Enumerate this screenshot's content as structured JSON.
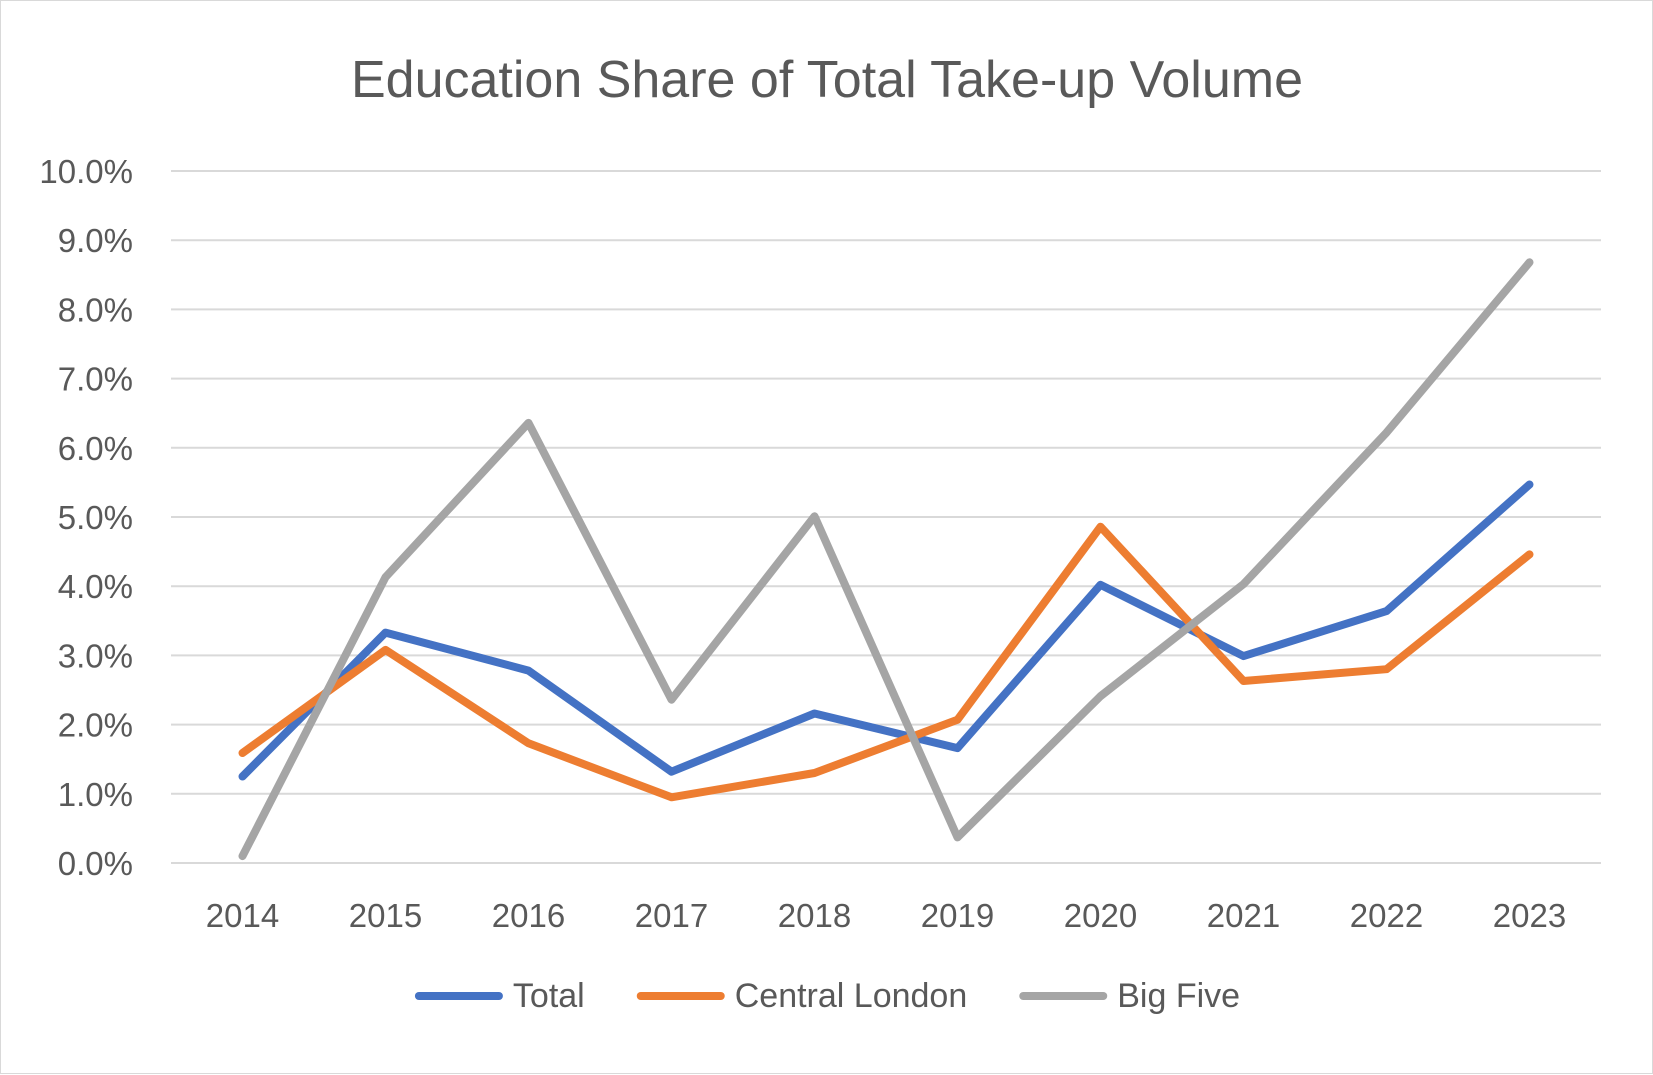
{
  "chart_data": {
    "type": "line",
    "title": "Education Share of Total Take-up Volume",
    "xlabel": "",
    "ylabel": "",
    "categories": [
      "2014",
      "2015",
      "2016",
      "2017",
      "2018",
      "2019",
      "2020",
      "2021",
      "2022",
      "2023"
    ],
    "yticks": [
      "0.0%",
      "1.0%",
      "2.0%",
      "3.0%",
      "4.0%",
      "5.0%",
      "6.0%",
      "7.0%",
      "8.0%",
      "9.0%",
      "10.0%"
    ],
    "ylim": [
      0,
      10
    ],
    "y_unit": "%",
    "grid": true,
    "legend_position": "bottom",
    "series": [
      {
        "name": "Total",
        "color": "#4472c4",
        "values": [
          1.25,
          3.33,
          2.78,
          1.32,
          2.16,
          1.66,
          4.02,
          2.99,
          3.64,
          5.47
        ]
      },
      {
        "name": "Central London",
        "color": "#ed7d31",
        "values": [
          1.59,
          3.08,
          1.73,
          0.95,
          1.3,
          2.07,
          4.86,
          2.63,
          2.8,
          4.46
        ]
      },
      {
        "name": "Big Five",
        "color": "#a5a5a5",
        "values": [
          0.1,
          4.13,
          6.36,
          2.36,
          5.01,
          0.37,
          2.41,
          4.03,
          6.22,
          8.68
        ]
      }
    ]
  }
}
